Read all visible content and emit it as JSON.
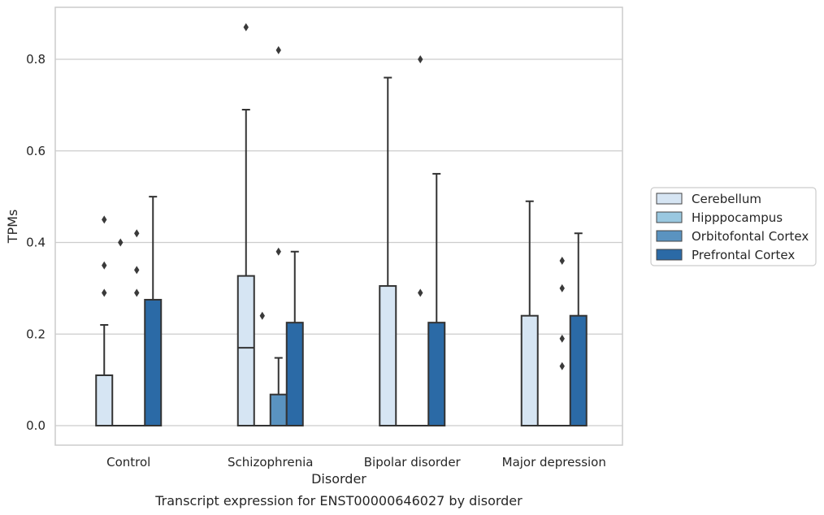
{
  "chart_data": {
    "type": "box",
    "caption": "Transcript expression for ENST00000646027 by disorder",
    "xlabel": "Disorder",
    "ylabel": "TPMs",
    "ylim": [
      -0.042,
      0.917
    ],
    "yticks": [
      0.0,
      0.2,
      0.4,
      0.6,
      0.8
    ],
    "ytick_labels": [
      "0.0",
      "0.2",
      "0.4",
      "0.6",
      "0.8"
    ],
    "grid": "horizontal",
    "legend_position": "right",
    "categories": [
      "Control",
      "Schizophrenia",
      "Bipolar disorder",
      "Major depression"
    ],
    "series": [
      {
        "name": "Cerebellum",
        "color": "#d6e5f3",
        "boxes": [
          {
            "q1": 0.0,
            "median": 0.0,
            "q3": 0.11,
            "whisker_low": 0.0,
            "whisker_high": 0.22,
            "outliers": [
              0.29,
              0.35,
              0.45
            ]
          },
          {
            "q1": 0.0,
            "median": 0.17,
            "q3": 0.327,
            "whisker_low": 0.0,
            "whisker_high": 0.69,
            "outliers": [
              0.87
            ]
          },
          {
            "q1": 0.0,
            "median": 0.0,
            "q3": 0.305,
            "whisker_low": 0.0,
            "whisker_high": 0.76,
            "outliers": []
          },
          {
            "q1": 0.0,
            "median": 0.0,
            "q3": 0.24,
            "whisker_low": 0.0,
            "whisker_high": 0.49,
            "outliers": []
          }
        ]
      },
      {
        "name": "Hipppocampus",
        "color": "#9ac8e0",
        "boxes": [
          {
            "q1": 0.0,
            "median": 0.0,
            "q3": 0.0,
            "whisker_low": 0.0,
            "whisker_high": 0.0,
            "outliers": [
              0.4
            ]
          },
          {
            "q1": 0.0,
            "median": 0.0,
            "q3": 0.0,
            "whisker_low": 0.0,
            "whisker_high": 0.0,
            "outliers": [
              0.24
            ]
          },
          {
            "q1": 0.0,
            "median": 0.0,
            "q3": 0.0,
            "whisker_low": 0.0,
            "whisker_high": 0.0,
            "outliers": []
          },
          {
            "q1": 0.0,
            "median": 0.0,
            "q3": 0.0,
            "whisker_low": 0.0,
            "whisker_high": 0.0,
            "outliers": []
          }
        ]
      },
      {
        "name": "Orbitofontal Cortex",
        "color": "#5a93c0",
        "boxes": [
          {
            "q1": 0.0,
            "median": 0.0,
            "q3": 0.0,
            "whisker_low": 0.0,
            "whisker_high": 0.0,
            "outliers": [
              0.29,
              0.34,
              0.42
            ]
          },
          {
            "q1": 0.0,
            "median": 0.0,
            "q3": 0.068,
            "whisker_low": 0.0,
            "whisker_high": 0.148,
            "outliers": [
              0.38,
              0.82
            ]
          },
          {
            "q1": 0.0,
            "median": 0.0,
            "q3": 0.0,
            "whisker_low": 0.0,
            "whisker_high": 0.0,
            "outliers": [
              0.29,
              0.8
            ]
          },
          {
            "q1": 0.0,
            "median": 0.0,
            "q3": 0.0,
            "whisker_low": 0.0,
            "whisker_high": 0.0,
            "outliers": [
              0.13,
              0.19,
              0.3,
              0.36
            ]
          }
        ]
      },
      {
        "name": "Prefrontal Cortex",
        "color": "#2b6aa6",
        "boxes": [
          {
            "q1": 0.0,
            "median": 0.0,
            "q3": 0.275,
            "whisker_low": 0.0,
            "whisker_high": 0.5,
            "outliers": []
          },
          {
            "q1": 0.0,
            "median": 0.0,
            "q3": 0.225,
            "whisker_low": 0.0,
            "whisker_high": 0.38,
            "outliers": []
          },
          {
            "q1": 0.0,
            "median": 0.0,
            "q3": 0.225,
            "whisker_low": 0.0,
            "whisker_high": 0.55,
            "outliers": []
          },
          {
            "q1": 0.0,
            "median": 0.0,
            "q3": 0.24,
            "whisker_low": 0.0,
            "whisker_high": 0.42,
            "outliers": []
          }
        ]
      }
    ]
  }
}
